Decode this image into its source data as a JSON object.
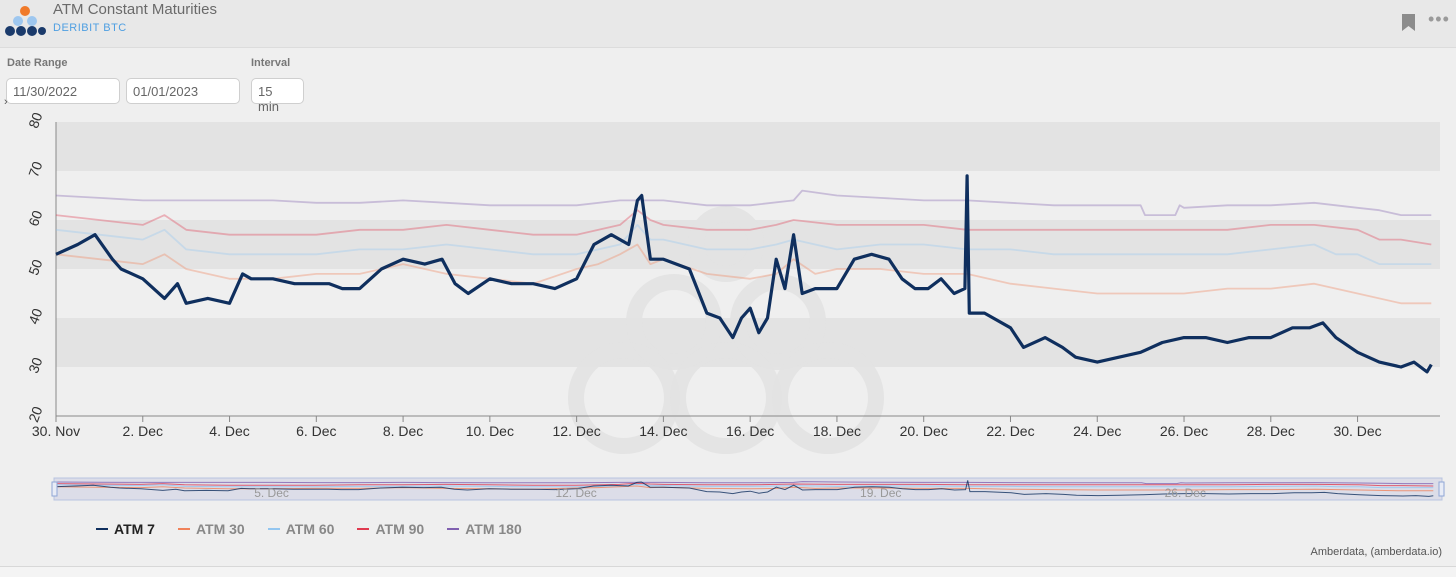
{
  "header": {
    "title": "ATM Constant Maturities",
    "subtitle": "DERIBIT BTC"
  },
  "controls": {
    "date_range_label": "Date Range",
    "date_from": "11/30/2022",
    "date_to": "01/01/2023",
    "interval_label": "Interval",
    "interval_value": "15 min"
  },
  "credit": "Amberdata, (amberdata.io)",
  "colors": {
    "ATM 7": "#0f2f5e",
    "ATM 30": "#f0825a",
    "ATM 60": "#93c6f0",
    "ATM 90": "#e03a50",
    "ATM 180": "#8060b0",
    "band": "#e3e3e3"
  },
  "chart_data": {
    "type": "line",
    "xlabel": "",
    "ylabel": "",
    "ylim": [
      20,
      80
    ],
    "yticks": [
      20,
      30,
      40,
      50,
      60,
      70,
      80
    ],
    "x_range": [
      "2022-11-30",
      "2023-01-01"
    ],
    "x_tick_labels": [
      "30. Nov",
      "2. Dec",
      "4. Dec",
      "6. Dec",
      "8. Dec",
      "10. Dec",
      "12. Dec",
      "14. Dec",
      "16. Dec",
      "18. Dec",
      "20. Dec",
      "22. Dec",
      "24. Dec",
      "26. Dec",
      "28. Dec",
      "30. Dec"
    ],
    "x_tick_days": [
      0,
      2,
      4,
      6,
      8,
      10,
      12,
      14,
      16,
      18,
      20,
      22,
      24,
      26,
      28,
      30
    ],
    "navigator_labels": [
      "5. Dec",
      "12. Dec",
      "19. Dec",
      "26. Dec"
    ],
    "navigator_days": [
      5,
      12,
      19,
      26
    ],
    "grid": true,
    "legend_position": "bottom-left",
    "series": [
      {
        "name": "ATM 7",
        "day": [
          0,
          0.5,
          0.9,
          1.3,
          1.5,
          2.0,
          2.5,
          2.8,
          3.0,
          3.5,
          4.0,
          4.3,
          4.5,
          5.0,
          5.5,
          6.0,
          6.3,
          6.6,
          7.0,
          7.5,
          8.0,
          8.5,
          8.9,
          9.2,
          9.5,
          10.0,
          10.5,
          11.0,
          11.5,
          12.0,
          12.4,
          12.8,
          13.2,
          13.4,
          13.5,
          13.7,
          14.0,
          14.3,
          14.6,
          15.0,
          15.3,
          15.6,
          15.8,
          16.0,
          16.2,
          16.4,
          16.6,
          16.8,
          17.0,
          17.2,
          17.5,
          18.0,
          18.4,
          18.8,
          19.2,
          19.5,
          19.8,
          20.1,
          20.4,
          20.7,
          20.95,
          21.0,
          21.05,
          21.4,
          22.0,
          22.3,
          22.8,
          23.2,
          23.5,
          24.0,
          24.5,
          25.0,
          25.5,
          26.0,
          26.5,
          27.0,
          27.5,
          28.0,
          28.5,
          28.9,
          29.2,
          29.5,
          30.0,
          30.5,
          31.0,
          31.3,
          31.6,
          31.7
        ],
        "values": [
          53,
          55,
          57,
          52,
          50,
          48,
          44,
          47,
          43,
          44,
          43,
          49,
          48,
          48,
          47,
          47,
          47,
          46,
          46,
          50,
          52,
          51,
          52,
          47,
          45,
          48,
          47,
          47,
          46,
          48,
          55,
          57,
          55,
          64,
          65,
          52,
          52,
          51,
          50,
          41,
          40,
          36,
          40,
          42,
          37,
          40,
          52,
          46,
          57,
          45,
          46,
          46,
          52,
          53,
          52,
          48,
          46,
          46,
          48,
          45,
          46,
          69,
          41,
          41,
          38,
          34,
          36,
          34,
          32,
          31,
          32,
          33,
          35,
          36,
          36,
          35,
          36,
          36,
          38,
          38,
          39,
          36,
          33,
          31,
          30,
          31,
          29,
          30.5
        ]
      },
      {
        "name": "ATM 30",
        "day": [
          0,
          1.0,
          2.0,
          2.5,
          3.0,
          3.5,
          4.0,
          5.0,
          6.0,
          7.0,
          8.0,
          9.0,
          10.0,
          11.0,
          12.0,
          12.5,
          13.0,
          13.4,
          13.7,
          14.0,
          15.0,
          16.0,
          16.6,
          17.0,
          17.5,
          18.0,
          19.0,
          20.0,
          21.0,
          22.0,
          23.0,
          24.0,
          25.0,
          26.0,
          27.0,
          28.0,
          29.0,
          30.0,
          31.0,
          31.7
        ],
        "values": [
          53,
          52,
          51,
          53,
          50,
          49,
          48,
          48,
          49,
          49,
          51,
          49,
          48,
          47,
          50,
          51,
          53,
          55,
          51,
          52,
          49,
          48,
          49,
          52,
          49,
          50,
          50,
          49,
          49,
          47,
          46,
          45,
          45,
          45,
          46,
          46,
          47,
          45,
          43,
          43
        ]
      },
      {
        "name": "ATM 60",
        "day": [
          0,
          1.0,
          2.0,
          2.5,
          3.0,
          4.0,
          5.0,
          6.0,
          7.0,
          8.0,
          9.0,
          10.0,
          11.0,
          12.0,
          13.0,
          13.4,
          13.7,
          14.0,
          15.0,
          16.0,
          16.6,
          17.0,
          18.0,
          19.0,
          20.0,
          21.0,
          22.0,
          23.0,
          24.0,
          25.0,
          26.0,
          27.0,
          28.0,
          29.0,
          29.5,
          30.0,
          30.5,
          31.0,
          31.7
        ],
        "values": [
          58,
          57,
          56,
          58,
          54,
          53,
          53,
          53,
          54,
          54,
          55,
          54,
          53,
          53,
          55,
          59,
          56,
          56,
          54,
          54,
          55,
          56,
          54,
          55,
          55,
          54,
          54,
          53,
          53,
          53,
          53,
          53,
          54,
          55,
          53,
          53,
          51,
          51,
          51
        ]
      },
      {
        "name": "ATM 90",
        "day": [
          0,
          1.0,
          2.0,
          2.5,
          3.0,
          4.0,
          5.0,
          6.0,
          7.0,
          8.0,
          9.0,
          10.0,
          11.0,
          12.0,
          13.0,
          13.4,
          13.7,
          14.0,
          15.0,
          16.0,
          16.6,
          17.0,
          18.0,
          19.0,
          20.0,
          21.0,
          22.0,
          23.0,
          24.0,
          25.0,
          26.0,
          27.0,
          28.0,
          29.0,
          30.0,
          30.5,
          31.0,
          31.7
        ],
        "values": [
          61,
          60,
          59,
          61,
          58,
          57,
          57,
          57,
          58,
          58,
          59,
          58,
          57,
          57,
          59,
          62,
          60,
          59,
          58,
          58,
          59,
          60,
          59,
          59,
          59,
          58,
          58,
          58,
          58,
          58,
          58,
          58,
          59,
          59,
          58,
          56,
          56,
          55
        ]
      },
      {
        "name": "ATM 180",
        "day": [
          0,
          1.0,
          2.0,
          3.0,
          4.0,
          5.0,
          6.0,
          7.0,
          8.0,
          9.0,
          10.0,
          11.0,
          12.0,
          13.0,
          14.0,
          15.0,
          16.0,
          17.0,
          17.2,
          18.0,
          19.0,
          20.0,
          21.0,
          22.0,
          23.0,
          24.0,
          25.0,
          25.1,
          25.8,
          25.9,
          26.0,
          27.0,
          28.0,
          29.0,
          30.0,
          30.5,
          31.0,
          31.7
        ],
        "values": [
          65,
          64.5,
          64,
          64,
          64,
          64,
          63.5,
          63.5,
          64,
          63.5,
          63,
          63,
          63,
          64,
          64,
          63,
          63,
          64,
          66,
          65,
          64.5,
          64,
          64,
          63.5,
          63,
          63,
          63,
          61,
          61,
          63,
          62.5,
          63,
          63,
          63.5,
          62.5,
          62,
          61,
          61
        ]
      }
    ]
  }
}
